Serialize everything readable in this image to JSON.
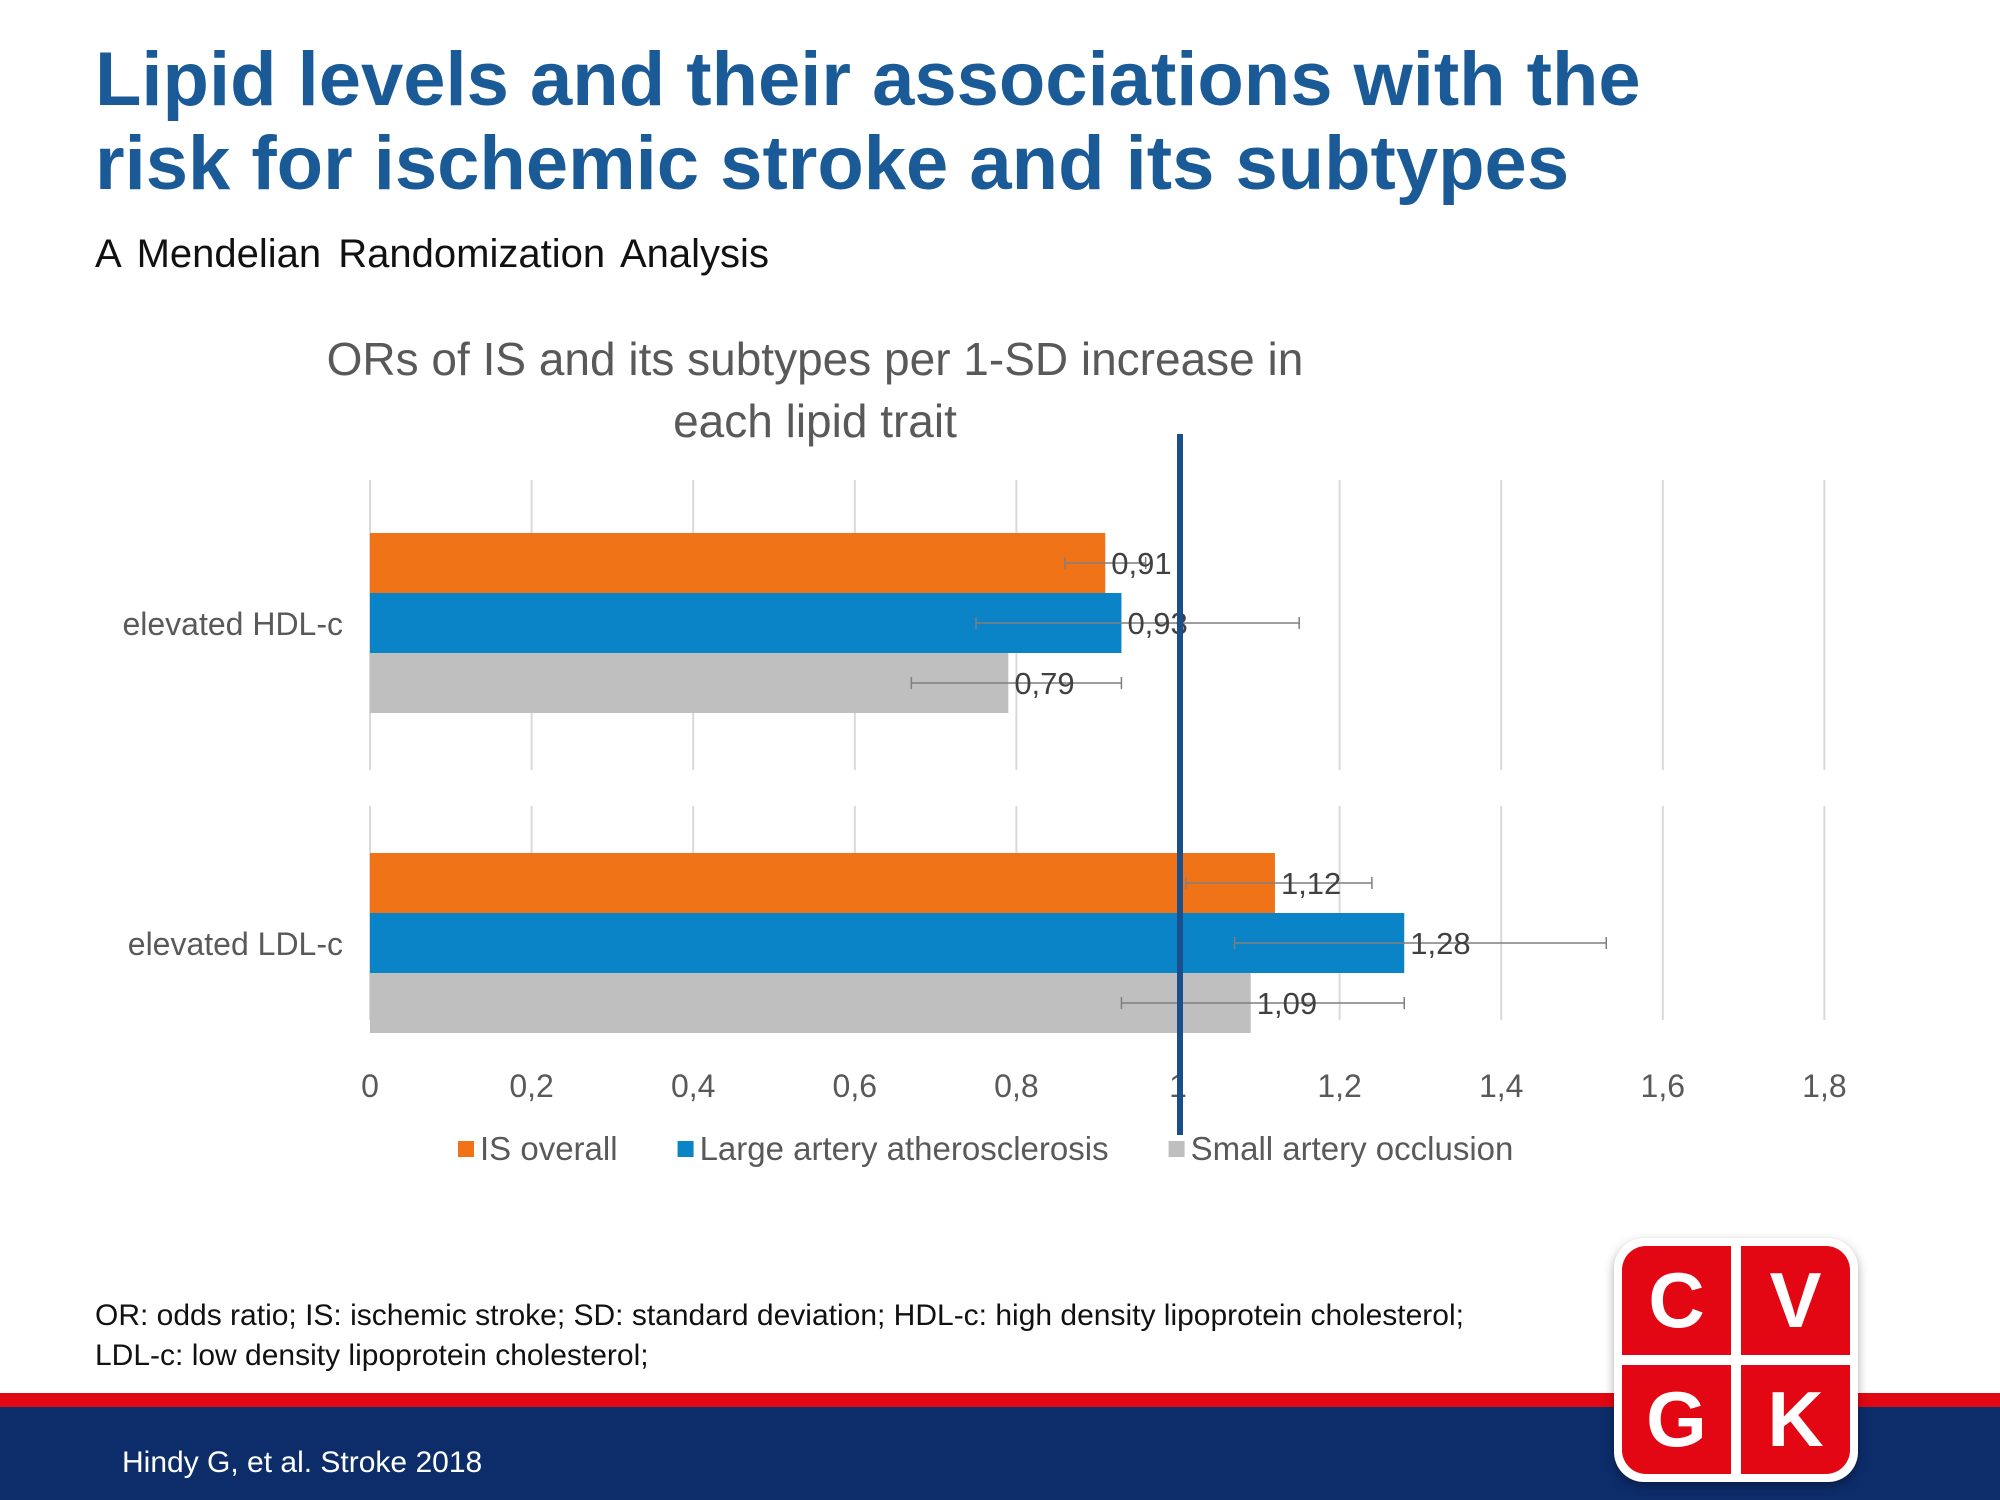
{
  "slide": {
    "title_line1": "Lipid levels and their associations with the",
    "title_line2": "risk for ischemic stroke and its subtypes",
    "subtitle": "A Mendelian Randomization Analysis",
    "footnote_line1": "OR: odds ratio; IS: ischemic stroke; SD: standard deviation; HDL-c: high density lipoprotein cholesterol;",
    "footnote_line2": "LDL-c: low density lipoprotein cholesterol;",
    "citation": "Hindy G, et al. Stroke 2018"
  },
  "logo": {
    "c1": "C",
    "c2": "V",
    "c3": "G",
    "c4": "K"
  },
  "colors": {
    "title": "#1a5a96",
    "is_overall": "#f07318",
    "large_artery": "#0a84c6",
    "small_artery": "#bfbfbf",
    "reference_line": "#1a4f8c",
    "red": "#e30613",
    "navy": "#0d2d6a"
  },
  "chart_data": {
    "type": "bar",
    "orientation": "horizontal",
    "title_line1": "ORs of IS and its subtypes per 1-SD increase in",
    "title_line2": "each lipid trait",
    "categories": [
      "elevated HDL-c",
      "elevated LDL-c"
    ],
    "series": [
      {
        "name": "IS overall",
        "color": "#f07318",
        "values": [
          0.91,
          1.12
        ],
        "labels": [
          "0,91",
          "1,12"
        ],
        "ci": [
          [
            0.86,
            0.96
          ],
          [
            1.01,
            1.24
          ]
        ]
      },
      {
        "name": "Large artery atherosclerosis",
        "color": "#0a84c6",
        "values": [
          0.93,
          1.28
        ],
        "labels": [
          "0,93",
          "1,28"
        ],
        "ci": [
          [
            0.75,
            1.15
          ],
          [
            1.07,
            1.53
          ]
        ]
      },
      {
        "name": "Small artery occlusion",
        "color": "#bfbfbf",
        "values": [
          0.79,
          1.09
        ],
        "labels": [
          "0,79",
          "1,09"
        ],
        "ci": [
          [
            0.67,
            0.93
          ],
          [
            0.93,
            1.28
          ]
        ]
      }
    ],
    "xlim": [
      0,
      1.8
    ],
    "x_ticks": [
      0,
      0.2,
      0.4,
      0.6,
      0.8,
      1,
      1.2,
      1.4,
      1.6,
      1.8
    ],
    "x_tick_labels": [
      "0",
      "0,2",
      "0,4",
      "0,6",
      "0,8",
      "1",
      "1,2",
      "1,4",
      "1,6",
      "1,8"
    ],
    "reference_line": 1,
    "grid": true,
    "legend_position": "bottom"
  }
}
